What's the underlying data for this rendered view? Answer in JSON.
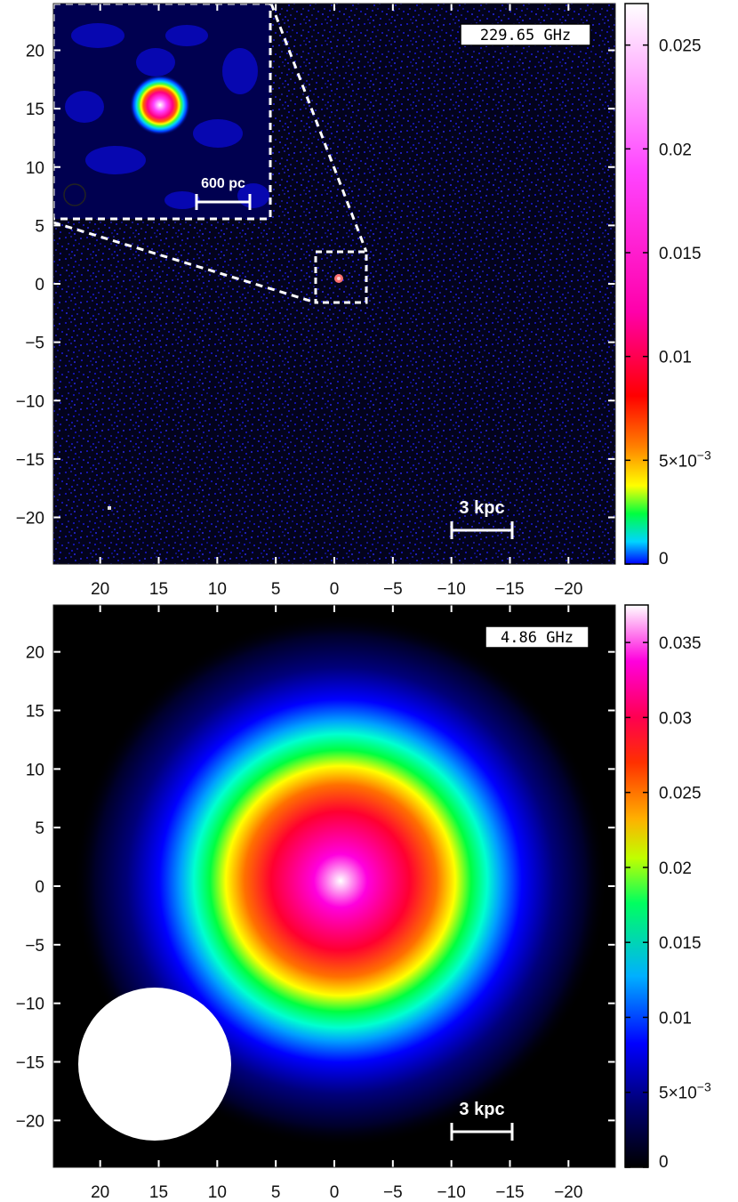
{
  "panels": [
    {
      "id": "top",
      "frequency_label": "229.65 GHz",
      "scale_bar_label": "3 kpc",
      "inset_scale_bar_label": "600 pc",
      "y_ticks": [
        "20",
        "15",
        "10",
        "5",
        "0",
        "−5",
        "−10",
        "−15",
        "−20"
      ],
      "x_ticks": [
        "20",
        "15",
        "10",
        "5",
        "0",
        "−5",
        "−10",
        "−15",
        "−20"
      ],
      "colorbar_ticks": [
        "0.025",
        "0.02",
        "0.015",
        "0.01",
        "5×10",
        "0"
      ],
      "colorbar_exponent": "−3",
      "colorbar_max": 0.027,
      "colorbar_gradient": [
        "#0000ff",
        "#00e5ff",
        "#00ff00",
        "#ffff00",
        "#ff8000",
        "#ff0000",
        "#ff00aa",
        "#ff66ff",
        "#ffffff"
      ],
      "background_color": "#05051a",
      "noise_color": "#1a1ad6",
      "source_core_color": "#ff8080"
    },
    {
      "id": "bottom",
      "frequency_label": "4.86 GHz",
      "scale_bar_label": "3 kpc",
      "y_ticks": [
        "20",
        "15",
        "10",
        "5",
        "0",
        "−5",
        "−10",
        "−15",
        "−20"
      ],
      "x_ticks": [
        "20",
        "15",
        "10",
        "5",
        "0",
        "−5",
        "−10",
        "−15",
        "−20"
      ],
      "colorbar_ticks": [
        "0.035",
        "0.03",
        "0.025",
        "0.02",
        "0.015",
        "0.01",
        "5×10",
        "0"
      ],
      "colorbar_exponent": "−3",
      "colorbar_max": 0.0375,
      "colorbar_gradient": [
        "#000000",
        "#000066",
        "#0000ff",
        "#00ccff",
        "#00ff00",
        "#ffff00",
        "#ff8000",
        "#ff0000",
        "#ff00cc",
        "#ffffff"
      ],
      "beam_color": "#ffffff"
    }
  ]
}
